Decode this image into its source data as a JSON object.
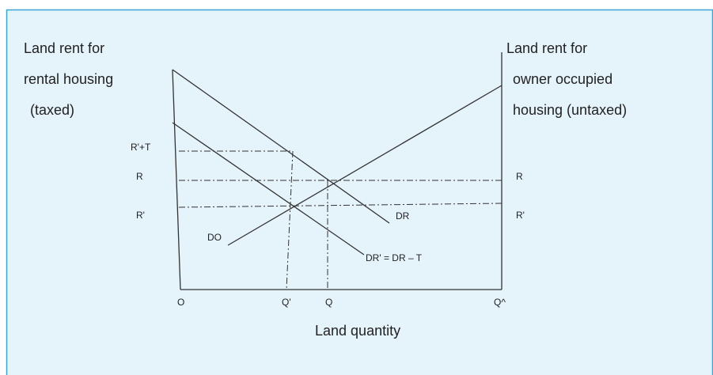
{
  "left_axis_label": [
    "Land rent for",
    "rental housing",
    "(taxed)"
  ],
  "right_axis_label": [
    "Land rent for",
    "owner occupied",
    "housing (untaxed)"
  ],
  "left_ticks": [
    "R'+T",
    "R",
    "R'"
  ],
  "right_ticks": [
    "R",
    "R'"
  ],
  "curves": {
    "dr": "DR",
    "do": "DO",
    "dr_taxed": "DR' = DR – T"
  },
  "x_ticks": [
    "O",
    "Q'",
    "Q",
    "Q^"
  ],
  "x_axis_label": "Land quantity"
}
